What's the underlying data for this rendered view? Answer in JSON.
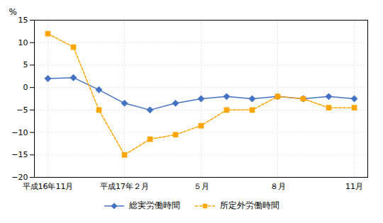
{
  "chart_data": {
    "type": "line",
    "categories": [
      "平成16年11月",
      null,
      null,
      "平成17年２月",
      null,
      null,
      "５月",
      null,
      null,
      "８月",
      null,
      null,
      "11月"
    ],
    "series": [
      {
        "name": "総実労働時間",
        "color": "#4472C4",
        "marker": "diamond",
        "line_style": "solid",
        "values": [
          2.0,
          2.2,
          -0.5,
          -3.5,
          -5.0,
          -3.5,
          -2.5,
          -2.0,
          -2.5,
          -2.0,
          -2.5,
          -2.0,
          -2.5
        ]
      },
      {
        "name": "所定外労働時間",
        "color": "#FFA500",
        "marker": "square",
        "line_style": "dashed",
        "values": [
          12.0,
          9.0,
          -5.0,
          -15.0,
          -11.5,
          -10.5,
          -8.5,
          -5.0,
          -5.0,
          -2.0,
          -2.5,
          -4.5,
          -4.5
        ]
      }
    ],
    "y_label": "%",
    "ylim": [
      -20,
      15
    ],
    "yticks": [
      -20,
      -15,
      -10,
      -5,
      0,
      5,
      10,
      15
    ],
    "grid": true,
    "legend": "bottom"
  }
}
